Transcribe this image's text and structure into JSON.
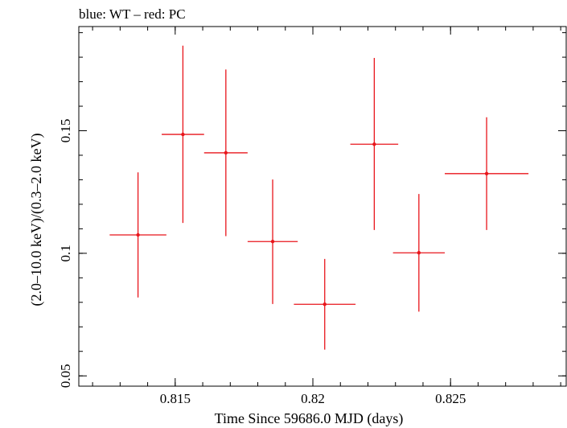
{
  "chart_data": {
    "type": "scatter",
    "title": "blue: WT – red: PC",
    "xlabel": "Time Since 59686.0 MJD (days)",
    "ylabel": "(2.0–10.0 keV)/(0.3–2.0 keV)",
    "xlim": [
      0.8115,
      0.8292
    ],
    "ylim": [
      0.0458,
      0.1925
    ],
    "x_ticks": [
      {
        "value": 0.815,
        "label": "0.815"
      },
      {
        "value": 0.82,
        "label": "0.82"
      },
      {
        "value": 0.825,
        "label": "0.825"
      }
    ],
    "y_ticks": [
      {
        "value": 0.05,
        "label": "0.05"
      },
      {
        "value": 0.1,
        "label": "0.1"
      },
      {
        "value": 0.15,
        "label": "0.15"
      }
    ],
    "grid": false,
    "series": [
      {
        "color": "#e8151b",
        "points": [
          {
            "x": 0.81365,
            "xerr": 0.00103,
            "y": 0.1075,
            "yerr_low": 0.0255,
            "yerr_high": 0.0255
          },
          {
            "x": 0.81528,
            "xerr": 0.00077,
            "y": 0.1485,
            "yerr_low": 0.0361,
            "yerr_high": 0.0362
          },
          {
            "x": 0.81684,
            "xerr": 0.00079,
            "y": 0.141,
            "yerr_low": 0.034,
            "yerr_high": 0.034
          },
          {
            "x": 0.81854,
            "xerr": 0.00091,
            "y": 0.1048,
            "yerr_low": 0.0255,
            "yerr_high": 0.0253
          },
          {
            "x": 0.82043,
            "xerr": 0.00112,
            "y": 0.0792,
            "yerr_low": 0.0185,
            "yerr_high": 0.0185
          },
          {
            "x": 0.82223,
            "xerr": 0.00087,
            "y": 0.1445,
            "yerr_low": 0.035,
            "yerr_high": 0.0352
          },
          {
            "x": 0.82385,
            "xerr": 0.00094,
            "y": 0.1002,
            "yerr_low": 0.024,
            "yerr_high": 0.024
          },
          {
            "x": 0.82631,
            "xerr": 0.00152,
            "y": 0.1325,
            "yerr_low": 0.023,
            "yerr_high": 0.023
          }
        ]
      }
    ]
  }
}
